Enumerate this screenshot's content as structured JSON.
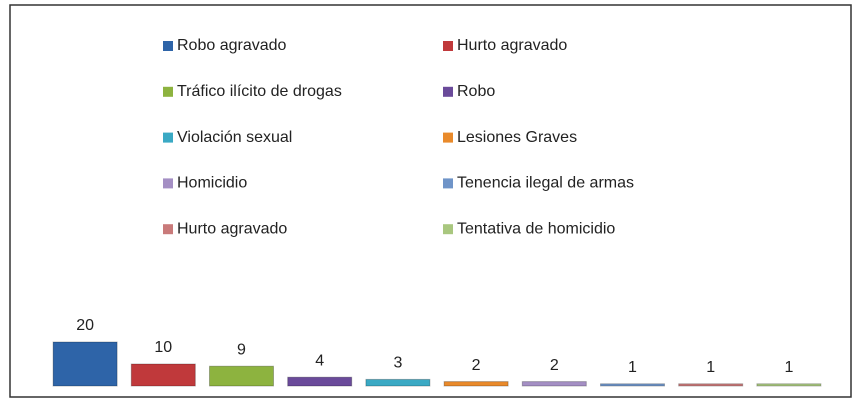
{
  "chart_data": {
    "type": "bar",
    "categories": [
      "Robo agravado",
      "Hurto agravado",
      "Tráfico ilícito de drogas",
      "Robo",
      "Violación sexual",
      "Lesiones Graves",
      "Homicidio",
      "Tenencia ilegal de armas",
      "Hurto agravado",
      "Tentativa de homicidio"
    ],
    "values": [
      20,
      10,
      9,
      4,
      3,
      2,
      2,
      1,
      1,
      1
    ],
    "colors": [
      "#2e64a8",
      "#c0393b",
      "#8db33f",
      "#6a4a9a",
      "#3aa9c4",
      "#e98a2b",
      "#a48fc4",
      "#6f94c8",
      "#c97a7a",
      "#a9c77f"
    ],
    "ylim": [
      0,
      20
    ]
  }
}
